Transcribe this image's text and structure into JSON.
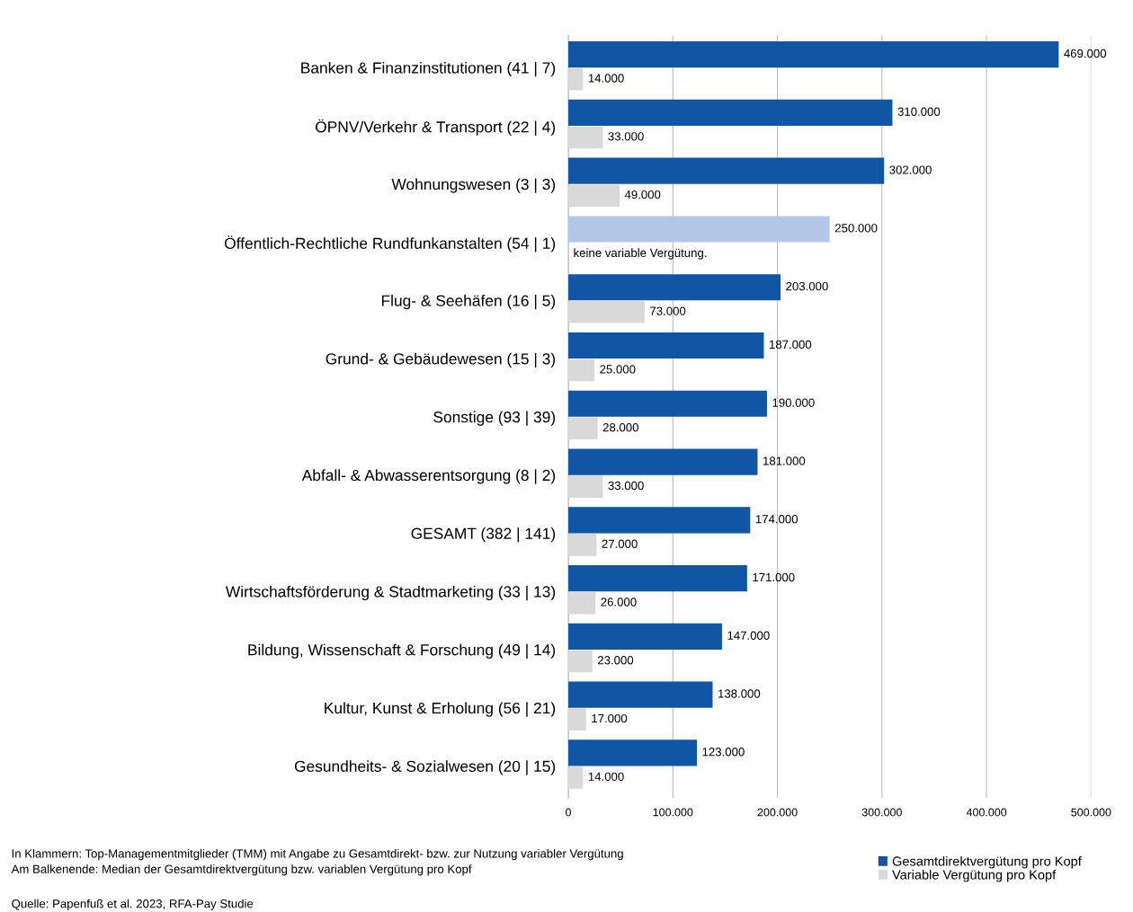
{
  "chart_data": {
    "type": "bar",
    "orientation": "horizontal",
    "categories": [
      "Banken & Finanzinstitutionen (41 | 7)",
      "ÖPNV/Verkehr & Transport (22 | 4)",
      "Wohnungswesen (3 | 3)",
      "Öffentlich-Rechtliche Rundfunkanstalten (54 | 1)",
      "Flug- & Seehäfen (16 | 5)",
      "Grund- & Gebäudewesen (15 | 3)",
      "Sonstige (93 | 39)",
      "Abfall- & Abwasserentsorgung (8 | 2)",
      "GESAMT (382 | 141)",
      "Wirtschaftsförderung & Stadtmarketing (33 | 13)",
      "Bildung, Wissenschaft & Forschung (49 | 14)",
      "Kultur, Kunst & Erholung (56 | 21)",
      "Gesundheits- & Sozialwesen (20 | 15)"
    ],
    "series": [
      {
        "name": "Gesamtdirektvergütung pro Kopf",
        "color": "#1155a5",
        "colors": [
          "#1155a5",
          "#1155a5",
          "#1155a5",
          "#b4c7e7",
          "#1155a5",
          "#1155a5",
          "#1155a5",
          "#1155a5",
          "#1155a5",
          "#1155a5",
          "#1155a5",
          "#1155a5",
          "#1155a5"
        ],
        "values": [
          469000,
          310000,
          302000,
          250000,
          203000,
          187000,
          190000,
          181000,
          174000,
          171000,
          147000,
          138000,
          123000
        ],
        "value_labels": [
          "469.000",
          "310.000",
          "302.000",
          "250.000",
          "203.000",
          "187.000",
          "190.000",
          "181.000",
          "174.000",
          "171.000",
          "147.000",
          "138.000",
          "123.000"
        ]
      },
      {
        "name": "Variable Vergütung pro Kopf",
        "color": "#d9d9d9",
        "values": [
          14000,
          33000,
          49000,
          null,
          73000,
          25000,
          28000,
          33000,
          27000,
          26000,
          23000,
          17000,
          14000
        ],
        "value_labels": [
          "14.000",
          "33.000",
          "49.000",
          null,
          "73.000",
          "25.000",
          "28.000",
          "33.000",
          "27.000",
          "26.000",
          "23.000",
          "17.000",
          "14.000"
        ]
      }
    ],
    "xlim": [
      0,
      500000
    ],
    "xticks": [
      0,
      {
        "value": 100000,
        "label": "100.000"
      },
      {
        "value": 200000,
        "label": "200.000"
      },
      {
        "value": 300000,
        "label": "300.000"
      },
      {
        "value": 400000,
        "label": "400.000"
      },
      {
        "value": 500000,
        "label": "500.000"
      }
    ],
    "grid": "x",
    "legend": "bottom right",
    "annotations": [
      {
        "text": "keine variable Vergütung.",
        "x": 0,
        "y": "Öffentlich-Rechtliche Rundfunkanstalten (54 | 1)"
      },
      "In Klammern: Top-Managementmitglieder (TMM) mit Angabe zu Gesamtdirekt- bzw. zur Nutzung variabler Vergütung",
      "Am Balkenende: Median der Gesamtdirektvergütung bzw. variablen Vergütung pro Kopf",
      "Quelle: Papenfuß et al. 2023, RFA-Pay Studie"
    ]
  }
}
